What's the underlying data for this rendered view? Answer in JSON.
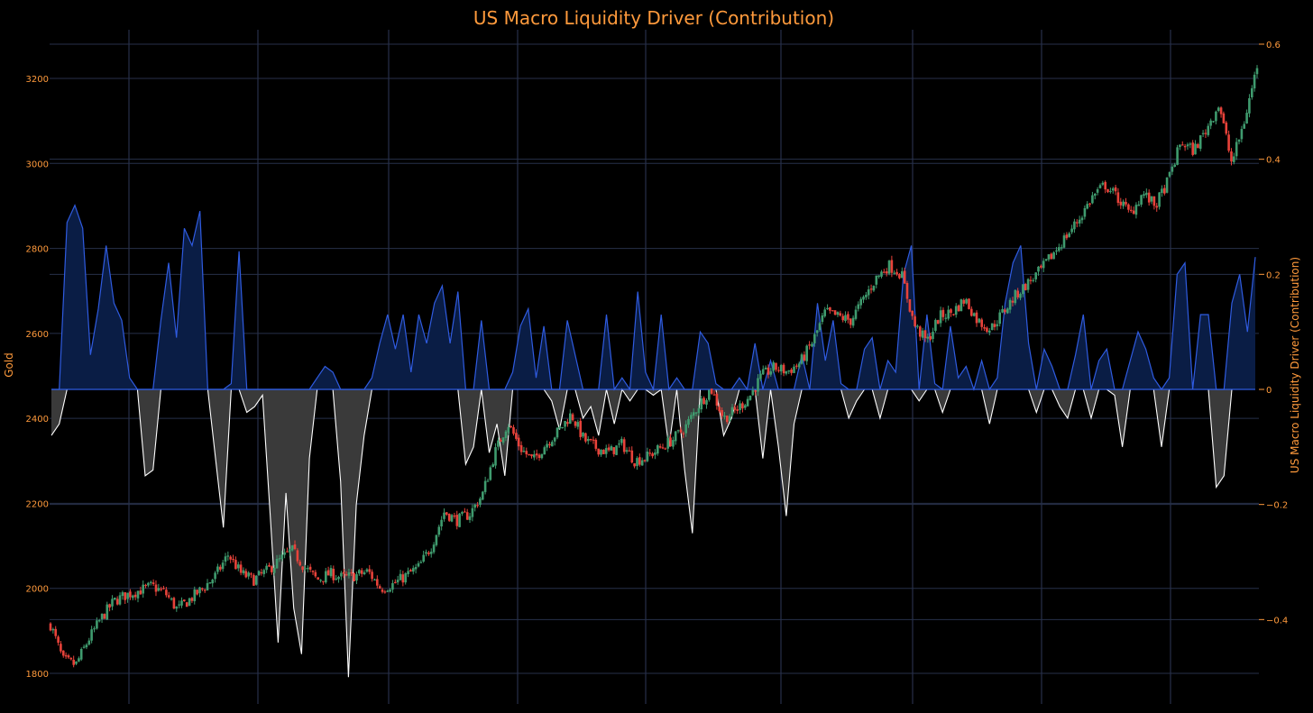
{
  "chart_data": {
    "type": "candlestick+area",
    "title": "US Macro Liquidity Driver (Contribution)",
    "y_left_label": "Gold",
    "y_right_label": "US Macro Liquidity Driver (Contribution)",
    "y_left_range": [
      1780,
      3290
    ],
    "y_left_ticks": [
      "1800",
      "2000",
      "2200",
      "2400",
      "2600",
      "2800",
      "3000",
      "3200"
    ],
    "y_right_range": [
      -0.52,
      0.6
    ],
    "y_right_ticks": [
      "−0.4",
      "−0.2",
      "0",
      "0.2",
      "0.4",
      "0.6"
    ],
    "x_ticks": [],
    "grid": true,
    "colors": {
      "background": "#000000",
      "grid": "#27304a",
      "title": "#ff9a3c",
      "tick": "#ff9a3c",
      "up_candle": "#3f9b6e",
      "down_candle": "#e8423a",
      "pos_line": "#2f5be0",
      "pos_fill": "#0a1d45",
      "neg_line": "#ffffff",
      "neg_fill": "#3a3a3a"
    },
    "series": [
      {
        "name": "Gold",
        "kind": "candlestick",
        "close_path": [
          1915,
          1830,
          1820,
          1880,
          1930,
          1970,
          1985,
          1995,
          2005,
          1990,
          1950,
          1975,
          2000,
          2030,
          2080,
          2035,
          2020,
          2040,
          2065,
          2090,
          2050,
          2020,
          2035,
          2025,
          2030,
          2040,
          2000,
          2010,
          2030,
          2050,
          2100,
          2180,
          2160,
          2175,
          2220,
          2320,
          2390,
          2330,
          2300,
          2340,
          2370,
          2410,
          2350,
          2330,
          2320,
          2340,
          2300,
          2310,
          2330,
          2350,
          2380,
          2430,
          2470,
          2400,
          2420,
          2450,
          2500,
          2520,
          2510,
          2530,
          2580,
          2650,
          2640,
          2630,
          2680,
          2730,
          2760,
          2740,
          2620,
          2580,
          2640,
          2650,
          2680,
          2630,
          2610,
          2650,
          2690,
          2720,
          2750,
          2790,
          2830,
          2870,
          2920,
          2950,
          2920,
          2880,
          2930,
          2900,
          2960,
          3050,
          3030,
          3080,
          3140,
          3000,
          3100,
          3230
        ]
      },
      {
        "name": "US Macro Liquidity Driver (Contribution)",
        "kind": "area",
        "values": [
          -0.08,
          -0.06,
          0.29,
          0.32,
          0.28,
          0.06,
          0.14,
          0.25,
          0.15,
          0.12,
          0.02,
          0.0,
          -0.15,
          -0.14,
          0.12,
          0.22,
          0.09,
          0.28,
          0.25,
          0.31,
          0.0,
          -0.12,
          -0.24,
          0.01,
          0.24,
          -0.04,
          -0.03,
          -0.01,
          -0.22,
          -0.44,
          -0.18,
          -0.38,
          -0.46,
          -0.12,
          0.02,
          0.04,
          0.03,
          -0.16,
          -0.5,
          -0.2,
          -0.08,
          0.02,
          0.08,
          0.13,
          0.07,
          0.13,
          0.03,
          0.13,
          0.08,
          0.15,
          0.18,
          0.08,
          0.17,
          -0.13,
          -0.1,
          0.12,
          -0.11,
          -0.06,
          -0.15,
          0.03,
          0.11,
          0.14,
          0.02,
          0.11,
          -0.02,
          -0.07,
          0.12,
          0.06,
          -0.05,
          -0.03,
          -0.08,
          0.13,
          -0.06,
          0.02,
          -0.02,
          0.17,
          0.03,
          -0.01,
          0.13,
          -0.1,
          0.02,
          -0.14,
          -0.25,
          0.1,
          0.08,
          0.01,
          -0.08,
          -0.05,
          0.02,
          0.0,
          0.08,
          -0.12,
          0.05,
          -0.1,
          -0.22,
          -0.06,
          0.06,
          0.0,
          0.15,
          0.05,
          0.12,
          0.01,
          -0.05,
          -0.02,
          0.07,
          0.09,
          -0.05,
          0.05,
          0.03,
          0.2,
          0.25,
          -0.02,
          0.13,
          0.01,
          -0.04,
          0.11,
          0.02,
          0.04,
          0.0,
          0.05,
          -0.06,
          0.02,
          0.15,
          0.22,
          0.25,
          0.08,
          -0.04,
          0.07,
          0.04,
          -0.03,
          -0.05,
          0.06,
          0.13,
          -0.05,
          0.05,
          0.07,
          -0.01,
          -0.1,
          0.05,
          0.1,
          0.07,
          0.02,
          -0.1,
          0.02,
          0.2,
          0.22,
          0.0,
          0.13,
          0.13,
          -0.17,
          -0.15,
          0.15,
          0.2,
          0.1,
          0.23
        ]
      }
    ]
  }
}
